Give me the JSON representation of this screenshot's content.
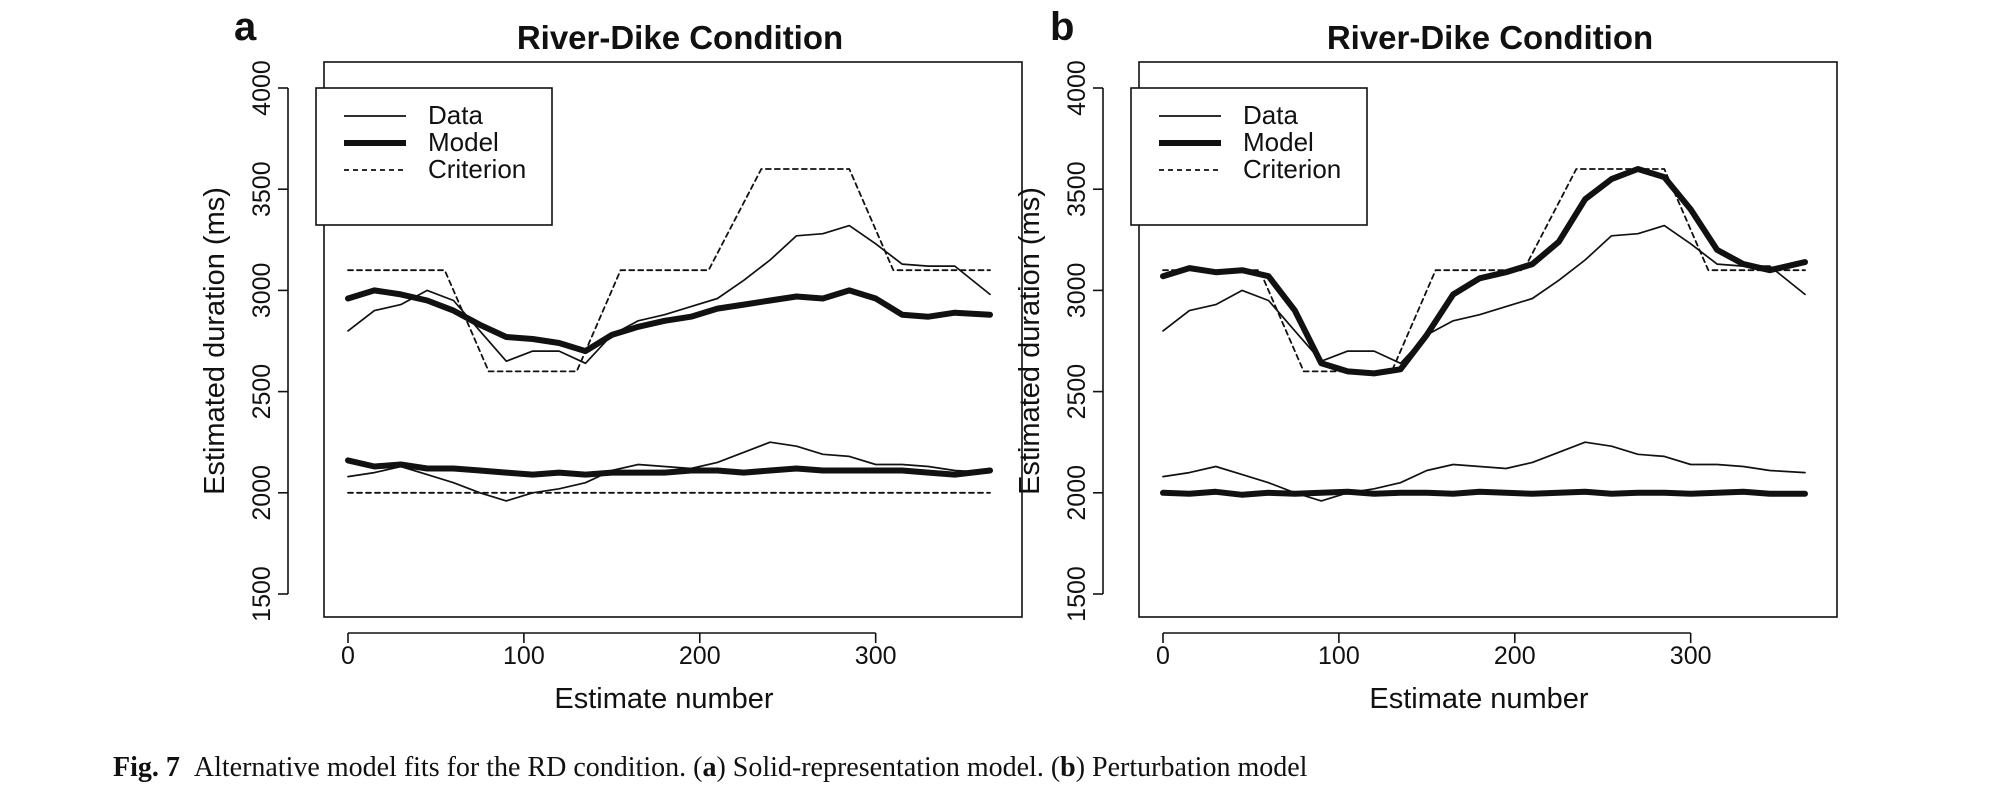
{
  "caption": {
    "label": "Fig. 7",
    "text_1": "Alternative model fits for the RD condition. (",
    "a": "a",
    "text_2": ") Solid-representation model. (",
    "b": "b",
    "text_3": ") Perturbation model"
  },
  "chart_data": [
    {
      "panel": "a",
      "type": "line",
      "title": "River-Dike Condition",
      "xlabel": "Estimate number",
      "ylabel": "Estimated duration (ms)",
      "xlim": [
        0,
        365
      ],
      "ylim": [
        1500,
        4000
      ],
      "xticks": [
        0,
        100,
        200,
        300
      ],
      "yticks": [
        1500,
        2000,
        2500,
        3000,
        3500,
        4000
      ],
      "legend": {
        "position": "top-left",
        "entries": [
          "Data",
          "Model",
          "Criterion"
        ]
      },
      "grid": false,
      "series": [
        {
          "name": "Data",
          "style": "thin",
          "groups": [
            {
              "x": [
                0,
                15,
                30,
                45,
                60,
                75,
                90,
                105,
                120,
                135,
                150,
                165,
                180,
                195,
                210,
                225,
                240,
                255,
                270,
                285,
                300,
                315,
                330,
                345,
                365
              ],
              "y": [
                2800,
                2900,
                2930,
                3000,
                2950,
                2800,
                2650,
                2700,
                2700,
                2640,
                2780,
                2850,
                2880,
                2920,
                2960,
                3050,
                3150,
                3270,
                3280,
                3320,
                3230,
                3130,
                3120,
                3120,
                2980
              ]
            },
            {
              "x": [
                0,
                15,
                30,
                45,
                60,
                75,
                90,
                105,
                120,
                135,
                150,
                165,
                180,
                195,
                210,
                225,
                240,
                255,
                270,
                285,
                300,
                315,
                330,
                345,
                365
              ],
              "y": [
                2080,
                2100,
                2130,
                2090,
                2050,
                2000,
                1960,
                2000,
                2020,
                2050,
                2110,
                2140,
                2130,
                2120,
                2150,
                2200,
                2250,
                2230,
                2190,
                2180,
                2140,
                2140,
                2130,
                2110,
                2100
              ]
            }
          ]
        },
        {
          "name": "Model",
          "style": "thick",
          "groups": [
            {
              "x": [
                0,
                15,
                30,
                45,
                60,
                75,
                90,
                105,
                120,
                135,
                150,
                165,
                180,
                195,
                210,
                225,
                240,
                255,
                270,
                285,
                300,
                315,
                330,
                345,
                365
              ],
              "y": [
                2960,
                3000,
                2980,
                2950,
                2900,
                2830,
                2770,
                2760,
                2740,
                2700,
                2780,
                2820,
                2850,
                2870,
                2910,
                2930,
                2950,
                2970,
                2960,
                3000,
                2960,
                2880,
                2870,
                2890,
                2880
              ]
            },
            {
              "x": [
                0,
                15,
                30,
                45,
                60,
                75,
                90,
                105,
                120,
                135,
                150,
                165,
                180,
                195,
                210,
                225,
                240,
                255,
                270,
                285,
                300,
                315,
                330,
                345,
                365
              ],
              "y": [
                2160,
                2130,
                2140,
                2120,
                2120,
                2110,
                2100,
                2090,
                2100,
                2090,
                2100,
                2100,
                2100,
                2110,
                2110,
                2100,
                2110,
                2120,
                2110,
                2110,
                2110,
                2110,
                2100,
                2090,
                2110
              ]
            }
          ]
        },
        {
          "name": "Criterion",
          "style": "dotted",
          "groups": [
            {
              "x": [
                0,
                55,
                80,
                130,
                155,
                205,
                235,
                285,
                310,
                365
              ],
              "y": [
                3100,
                3100,
                2600,
                2600,
                3100,
                3100,
                3600,
                3600,
                3100,
                3100
              ]
            },
            {
              "x": [
                0,
                365
              ],
              "y": [
                2000,
                2000
              ]
            }
          ]
        }
      ]
    },
    {
      "panel": "b",
      "type": "line",
      "title": "River-Dike Condition",
      "xlabel": "Estimate number",
      "ylabel": "Estimated duration (ms)",
      "xlim": [
        0,
        365
      ],
      "ylim": [
        1500,
        4000
      ],
      "xticks": [
        0,
        100,
        200,
        300
      ],
      "yticks": [
        1500,
        2000,
        2500,
        3000,
        3500,
        4000
      ],
      "legend": {
        "position": "top-left",
        "entries": [
          "Data",
          "Model",
          "Criterion"
        ]
      },
      "grid": false,
      "series": [
        {
          "name": "Data",
          "style": "thin",
          "groups": [
            {
              "x": [
                0,
                15,
                30,
                45,
                60,
                75,
                90,
                105,
                120,
                135,
                150,
                165,
                180,
                195,
                210,
                225,
                240,
                255,
                270,
                285,
                300,
                315,
                330,
                345,
                365
              ],
              "y": [
                2800,
                2900,
                2930,
                3000,
                2950,
                2800,
                2650,
                2700,
                2700,
                2640,
                2780,
                2850,
                2880,
                2920,
                2960,
                3050,
                3150,
                3270,
                3280,
                3320,
                3230,
                3130,
                3120,
                3120,
                2980
              ]
            },
            {
              "x": [
                0,
                15,
                30,
                45,
                60,
                75,
                90,
                105,
                120,
                135,
                150,
                165,
                180,
                195,
                210,
                225,
                240,
                255,
                270,
                285,
                300,
                315,
                330,
                345,
                365
              ],
              "y": [
                2080,
                2100,
                2130,
                2090,
                2050,
                2000,
                1960,
                2000,
                2020,
                2050,
                2110,
                2140,
                2130,
                2120,
                2150,
                2200,
                2250,
                2230,
                2190,
                2180,
                2140,
                2140,
                2130,
                2110,
                2100
              ]
            }
          ]
        },
        {
          "name": "Model",
          "style": "thick",
          "groups": [
            {
              "x": [
                0,
                15,
                30,
                45,
                60,
                75,
                90,
                105,
                120,
                135,
                150,
                165,
                180,
                195,
                210,
                225,
                240,
                255,
                270,
                285,
                300,
                315,
                330,
                345,
                365
              ],
              "y": [
                3070,
                3110,
                3090,
                3100,
                3070,
                2900,
                2640,
                2600,
                2590,
                2610,
                2780,
                2980,
                3060,
                3090,
                3130,
                3240,
                3450,
                3550,
                3600,
                3560,
                3400,
                3200,
                3130,
                3100,
                3140
              ]
            },
            {
              "x": [
                0,
                15,
                30,
                45,
                60,
                75,
                90,
                105,
                120,
                135,
                150,
                165,
                180,
                195,
                210,
                225,
                240,
                255,
                270,
                285,
                300,
                315,
                330,
                345,
                365
              ],
              "y": [
                2000,
                1995,
                2005,
                1990,
                2000,
                1995,
                2000,
                2005,
                1995,
                2000,
                2000,
                1995,
                2005,
                2000,
                1995,
                2000,
                2005,
                1995,
                2000,
                2000,
                1995,
                2000,
                2005,
                1995,
                1995
              ]
            }
          ]
        },
        {
          "name": "Criterion",
          "style": "dotted",
          "groups": [
            {
              "x": [
                0,
                55,
                80,
                130,
                155,
                205,
                235,
                285,
                310,
                365
              ],
              "y": [
                3100,
                3100,
                2600,
                2600,
                3100,
                3100,
                3600,
                3600,
                3100,
                3100
              ]
            }
          ]
        }
      ]
    }
  ]
}
